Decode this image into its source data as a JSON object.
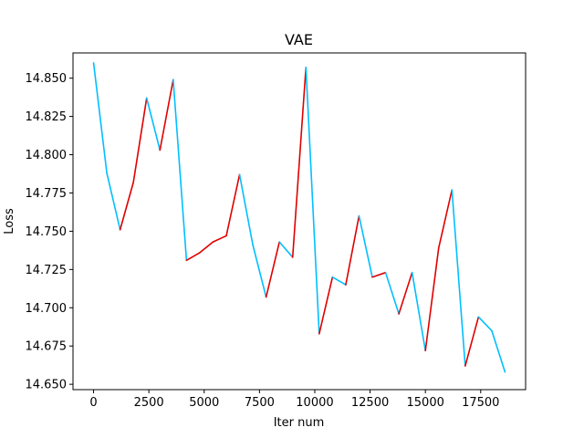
{
  "chart_data": {
    "type": "line",
    "title": "VAE",
    "xlabel": "Iter num",
    "ylabel": "Loss",
    "xlim": [
      -930,
      19530
    ],
    "ylim": [
      14.6465,
      14.8665
    ],
    "xticks": [
      0,
      2500,
      5000,
      7500,
      10000,
      12500,
      15000,
      17500
    ],
    "xtick_labels": [
      "0",
      "2500",
      "5000",
      "7500",
      "10000",
      "12500",
      "15000",
      "17500"
    ],
    "yticks": [
      14.65,
      14.675,
      14.7,
      14.725,
      14.75,
      14.775,
      14.8,
      14.825,
      14.85
    ],
    "ytick_labels": [
      "14.650",
      "14.675",
      "14.700",
      "14.725",
      "14.750",
      "14.775",
      "14.800",
      "14.825",
      "14.850"
    ],
    "grid": false,
    "colors": {
      "down": "#00bfff",
      "up": "#e00000"
    },
    "x": [
      0,
      600,
      1200,
      1800,
      2400,
      3000,
      3600,
      4200,
      4800,
      5400,
      6000,
      6600,
      7200,
      7800,
      8400,
      9000,
      9600,
      10200,
      10800,
      11400,
      12000,
      12600,
      13200,
      13800,
      14400,
      15000,
      15600,
      16200,
      16800,
      17400,
      18000,
      18600
    ],
    "series": [
      {
        "values": [
          14.86,
          14.788,
          14.751,
          14.782,
          14.837,
          14.803,
          14.849,
          14.731,
          14.736,
          14.743,
          14.747,
          14.787,
          14.741,
          14.707,
          14.743,
          14.733,
          14.857,
          14.683,
          14.72,
          14.715,
          14.76,
          14.72,
          14.723,
          14.696,
          14.723,
          14.672,
          14.739,
          14.777,
          14.662,
          14.694,
          14.685,
          14.658
        ]
      }
    ]
  }
}
